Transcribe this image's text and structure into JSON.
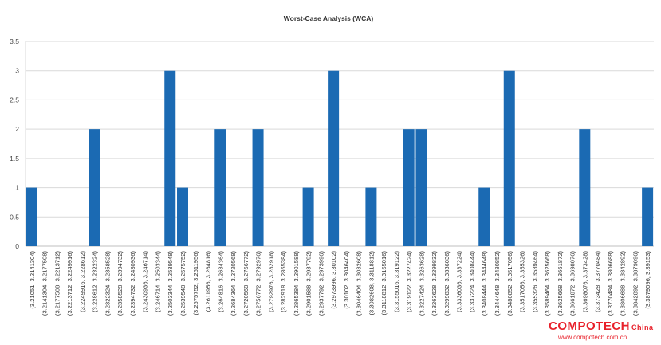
{
  "chart_data": {
    "type": "bar",
    "title": "Worst-Case Analysis (WCA)",
    "xlabel": "",
    "ylabel": "",
    "ylim": [
      0,
      3.5
    ],
    "yticks": [
      "0",
      "0.5",
      "1",
      "1.5",
      "2",
      "2.5",
      "3",
      "3.5"
    ],
    "grid": true,
    "legend": "none",
    "bar_color": "#1b6ab3",
    "categories": [
      "(3.21051, 3.2141304)",
      "(3.2141304, 3.2177508)",
      "(3.2177508, 3.2213712)",
      "(3.2213712, 3.2249916)",
      "(3.2249916, 3.228612)",
      "(3.228612, 3.2322324)",
      "(3.2322324, 3.2358528)",
      "(3.2358528, 3.2394732)",
      "(3.2394732, 3.2430936)",
      "(3.2430936, 3.246714)",
      "(3.246714, 3.2503344)",
      "(3.2503344, 3.2539548)",
      "(3.2539548, 3.2575752)",
      "(3.2575752, 3.2611956)",
      "(3.2611956, 3.264816)",
      "(3.264816, 3.2684364)",
      "(3.2684364, 3.2720568)",
      "(3.2720568, 3.2756772)",
      "(3.2756772, 3.2792976)",
      "(3.2792976, 3.282918)",
      "(3.282918, 3.2865384)",
      "(3.2865384, 3.2901588)",
      "(3.2901588, 3.2937792)",
      "(3.2937792, 3.2973996)",
      "(3.2973996, 3.30102)",
      "(3.30102, 3.3046404)",
      "(3.3046404, 3.3082608)",
      "(3.3082608, 3.3118812)",
      "(3.3118812, 3.3155016)",
      "(3.3155016, 3.319122)",
      "(3.319122, 3.3227424)",
      "(3.3227424, 3.3263628)",
      "(3.3263628, 3.3299832)",
      "(3.3299832, 3.3336036)",
      "(3.3336036, 3.337224)",
      "(3.337224, 3.3408444)",
      "(3.3408444, 3.3444648)",
      "(3.3444648, 3.3480852)",
      "(3.3480852, 3.3517056)",
      "(3.3517056, 3.355326)",
      "(3.355326, 3.3589464)",
      "(3.3589464, 3.3625668)",
      "(3.3625668, 3.3661872)",
      "(3.3661872, 3.3698076)",
      "(3.3698076, 3.373428)",
      "(3.373428, 3.3770484)",
      "(3.3770484, 3.3806688)",
      "(3.3806688, 3.3842892)",
      "(3.3842892, 3.3879096)",
      "(3.3879096, 3.39153)"
    ],
    "values": [
      1,
      0,
      0,
      0,
      0,
      2,
      0,
      0,
      0,
      0,
      0,
      3,
      1,
      0,
      0,
      2,
      0,
      0,
      2,
      0,
      0,
      0,
      1,
      0,
      3,
      0,
      0,
      1,
      0,
      0,
      2,
      2,
      0,
      0,
      0,
      0,
      1,
      0,
      3,
      0,
      0,
      0,
      0,
      0,
      2,
      0,
      0,
      0,
      0,
      1
    ]
  },
  "watermark": {
    "brand": "COMPOTECH",
    "suffix": "China",
    "url": "www.compotech.com.cn"
  }
}
